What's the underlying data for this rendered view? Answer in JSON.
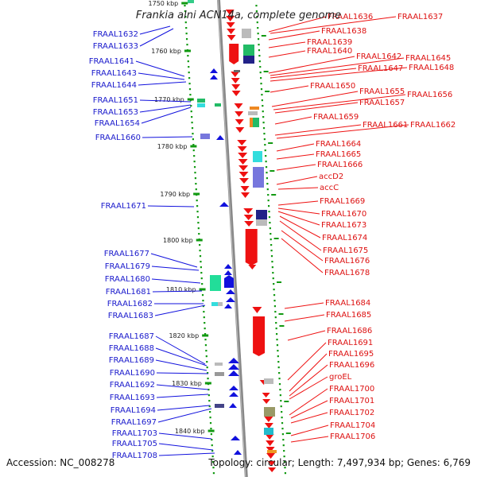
{
  "title": "Frankia alni ACN14a, complete genome",
  "footer": {
    "accession": "Accession: NC_008278",
    "summary": "Topology: circular; Length: 7,497,934 bp; Genes: 6,769"
  },
  "colors": {
    "forward_strand": "#1111dd",
    "reverse_strand": "#ee1111",
    "backbone": "#888888",
    "tick_marks": "#119911"
  },
  "ticks": [
    {
      "label": "1750 kbp"
    },
    {
      "label": "1760 kbp"
    },
    {
      "label": "1770 kbp"
    },
    {
      "label": "1780 kbp"
    },
    {
      "label": "1790 kbp"
    },
    {
      "label": "1800 kbp"
    },
    {
      "label": "1810 kbp"
    },
    {
      "label": "1820 kbp"
    },
    {
      "label": "1830 kbp"
    },
    {
      "label": "1840 kbp"
    }
  ],
  "left_labels": [
    "FRAAL1632",
    "FRAAL1633",
    "FRAAL1641",
    "FRAAL1643",
    "FRAAL1644",
    "FRAAL1651",
    "FRAAL1653",
    "FRAAL1654",
    "FRAAL1660",
    "FRAAL1671",
    "FRAAL1677",
    "FRAAL1679",
    "FRAAL1680",
    "FRAAL1681",
    "FRAAL1682",
    "FRAAL1683",
    "FRAAL1687",
    "FRAAL1688",
    "FRAAL1689",
    "FRAAL1690",
    "FRAAL1692",
    "FRAAL1693",
    "FRAAL1694",
    "FRAAL1697",
    "FRAAL1703",
    "FRAAL1705",
    "FRAAL1708"
  ],
  "right_labels": [
    "FRAAL1636",
    "FRAAL1637",
    "FRAAL1638",
    "FRAAL1639",
    "FRAAL1640",
    "FRAAL1642",
    "FRAAL1645",
    "FRAAL1647",
    "FRAAL1648",
    "FRAAL1650",
    "FRAAL1655",
    "FRAAL1656",
    "FRAAL1657",
    "FRAAL1659",
    "FRAAL1661",
    "FRAAL1662",
    "FRAAL1664",
    "FRAAL1665",
    "FRAAL1666",
    "accD2",
    "accC",
    "FRAAL1669",
    "FRAAL1670",
    "FRAAL1673",
    "FRAAL1674",
    "FRAAL1675",
    "FRAAL1676",
    "FRAAL1678",
    "FRAAL1684",
    "FRAAL1685",
    "FRAAL1686",
    "FRAAL1691",
    "FRAAL1695",
    "FRAAL1696",
    "groEL",
    "FRAAL1700",
    "FRAAL1701",
    "FRAAL1702",
    "FRAAL1704",
    "FRAAL1706"
  ]
}
